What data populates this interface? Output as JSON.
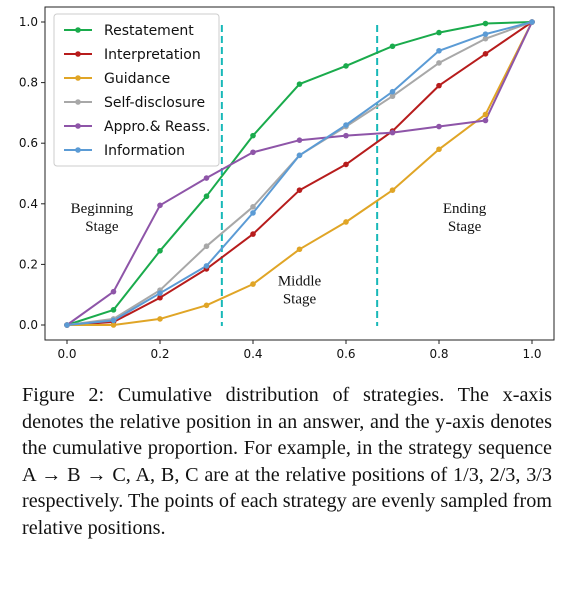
{
  "chart_data": {
    "type": "line",
    "title": "",
    "xlabel": "",
    "ylabel": "",
    "xlim": [
      0.0,
      1.0
    ],
    "ylim": [
      0.0,
      1.0
    ],
    "x_ticks": [
      "0.0",
      "0.2",
      "0.4",
      "0.6",
      "0.8",
      "1.0"
    ],
    "y_ticks": [
      "0.0",
      "0.2",
      "0.4",
      "0.6",
      "0.8",
      "1.0"
    ],
    "grid": false,
    "legend_position": "top-left",
    "x": [
      0.0,
      0.1,
      0.2,
      0.3,
      0.4,
      0.5,
      0.6,
      0.7,
      0.8,
      0.9,
      1.0
    ],
    "series": [
      {
        "name": "Restatement",
        "color": "#1aab4c",
        "values": [
          0.0,
          0.05,
          0.245,
          0.425,
          0.625,
          0.795,
          0.855,
          0.92,
          0.965,
          0.995,
          1.0
        ]
      },
      {
        "name": "Interpretation",
        "color": "#b71c1c",
        "values": [
          0.0,
          0.01,
          0.09,
          0.185,
          0.3,
          0.445,
          0.53,
          0.64,
          0.79,
          0.895,
          1.0
        ]
      },
      {
        "name": "Guidance",
        "color": "#e0a526",
        "values": [
          0.0,
          0.0,
          0.02,
          0.065,
          0.135,
          0.25,
          0.34,
          0.445,
          0.58,
          0.695,
          1.0
        ]
      },
      {
        "name": "Self-disclosure",
        "color": "#a8a8a8",
        "values": [
          0.0,
          0.02,
          0.115,
          0.26,
          0.39,
          0.56,
          0.655,
          0.755,
          0.865,
          0.945,
          1.0
        ]
      },
      {
        "name": "Appro.& Reass.",
        "color": "#8e55a8",
        "values": [
          0.0,
          0.11,
          0.395,
          0.485,
          0.57,
          0.61,
          0.625,
          0.635,
          0.655,
          0.675,
          1.0
        ]
      },
      {
        "name": "Information",
        "color": "#5b9bd5",
        "values": [
          0.0,
          0.015,
          0.105,
          0.195,
          0.37,
          0.56,
          0.66,
          0.77,
          0.905,
          0.96,
          1.0
        ]
      }
    ],
    "vlines": {
      "positions": [
        0.333,
        0.667
      ],
      "color": "#17b8b8"
    },
    "annotations": [
      {
        "lines": [
          "Beginning",
          "Stage"
        ],
        "x": 0.075,
        "y": 0.37
      },
      {
        "lines": [
          "Middle",
          "Stage"
        ],
        "x": 0.5,
        "y": 0.13
      },
      {
        "lines": [
          "Ending",
          "Stage"
        ],
        "x": 0.855,
        "y": 0.37
      }
    ]
  },
  "caption": "Figure 2: Cumulative distribution of strategies. The x-axis denotes the relative position in an answer, and the y-axis denotes the cumulative proportion. For example, in the strategy sequence A → B → C, A, B, C are at the relative positions of 1/3, 2/3, 3/3 respectively. The points of each strategy are evenly sampled from relative positions."
}
